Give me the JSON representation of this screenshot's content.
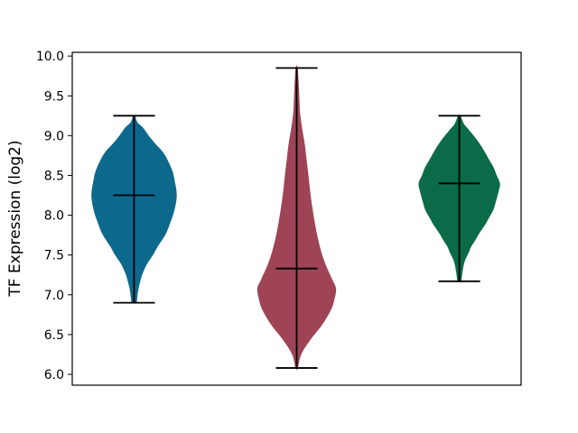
{
  "chart_data": {
    "type": "violin",
    "ylabel": "TF Expression (log2)",
    "ytick_labels": [
      "6.0",
      "6.5",
      "7.0",
      "7.5",
      "8.0",
      "8.5",
      "9.0",
      "9.5",
      "10.0"
    ],
    "ytick_values": [
      6.0,
      6.5,
      7.0,
      7.5,
      8.0,
      8.5,
      9.0,
      9.5,
      10.0
    ],
    "ylim": [
      5.864,
      10.047
    ],
    "xlim": [
      0.62,
      3.38
    ],
    "grid": false,
    "frame": true,
    "background": "#ffffff",
    "line_color": "#000000",
    "bar_halfwidth": 0.128,
    "violins": [
      {
        "name": "group-1",
        "position": 1,
        "color": "#0d698c",
        "min": 6.9,
        "max": 9.25,
        "median": 8.25,
        "profile": [
          [
            9.25,
            0.006
          ],
          [
            9.17,
            0.02
          ],
          [
            9.1,
            0.055
          ],
          [
            9.0,
            0.09
          ],
          [
            8.9,
            0.13
          ],
          [
            8.8,
            0.175
          ],
          [
            8.7,
            0.205
          ],
          [
            8.55,
            0.237
          ],
          [
            8.4,
            0.253
          ],
          [
            8.3,
            0.261
          ],
          [
            8.2,
            0.261
          ],
          [
            8.05,
            0.247
          ],
          [
            7.9,
            0.222
          ],
          [
            7.76,
            0.194
          ],
          [
            7.6,
            0.144
          ],
          [
            7.5,
            0.117
          ],
          [
            7.38,
            0.078
          ],
          [
            7.25,
            0.05
          ],
          [
            7.15,
            0.036
          ],
          [
            7.05,
            0.025
          ],
          [
            6.95,
            0.019
          ],
          [
            6.9,
            0.014
          ]
        ]
      },
      {
        "name": "group-2",
        "position": 2,
        "color": "#9e4456",
        "min": 6.08,
        "max": 9.85,
        "median": 7.33,
        "profile": [
          [
            9.85,
            0.006
          ],
          [
            9.6,
            0.014
          ],
          [
            9.4,
            0.018
          ],
          [
            9.27,
            0.022
          ],
          [
            9.1,
            0.033
          ],
          [
            8.89,
            0.05
          ],
          [
            8.7,
            0.061
          ],
          [
            8.51,
            0.072
          ],
          [
            8.3,
            0.083
          ],
          [
            8.13,
            0.094
          ],
          [
            7.95,
            0.108
          ],
          [
            7.76,
            0.125
          ],
          [
            7.55,
            0.15
          ],
          [
            7.38,
            0.178
          ],
          [
            7.2,
            0.217
          ],
          [
            7.08,
            0.242
          ],
          [
            6.95,
            0.233
          ],
          [
            6.81,
            0.211
          ],
          [
            6.62,
            0.156
          ],
          [
            6.43,
            0.083
          ],
          [
            6.25,
            0.028
          ],
          [
            6.08,
            0.007
          ]
        ]
      },
      {
        "name": "group-3",
        "position": 3,
        "color": "#0b6b49",
        "min": 7.17,
        "max": 9.25,
        "median": 8.4,
        "profile": [
          [
            9.25,
            0.007
          ],
          [
            9.15,
            0.028
          ],
          [
            9.08,
            0.056
          ],
          [
            8.97,
            0.1
          ],
          [
            8.89,
            0.128
          ],
          [
            8.78,
            0.161
          ],
          [
            8.7,
            0.183
          ],
          [
            8.6,
            0.211
          ],
          [
            8.51,
            0.228
          ],
          [
            8.4,
            0.25
          ],
          [
            8.3,
            0.242
          ],
          [
            8.15,
            0.222
          ],
          [
            8.06,
            0.208
          ],
          [
            7.95,
            0.178
          ],
          [
            7.87,
            0.156
          ],
          [
            7.77,
            0.122
          ],
          [
            7.68,
            0.097
          ],
          [
            7.6,
            0.072
          ],
          [
            7.53,
            0.058
          ],
          [
            7.45,
            0.039
          ],
          [
            7.38,
            0.028
          ],
          [
            7.28,
            0.019
          ],
          [
            7.17,
            0.01
          ]
        ]
      }
    ]
  }
}
